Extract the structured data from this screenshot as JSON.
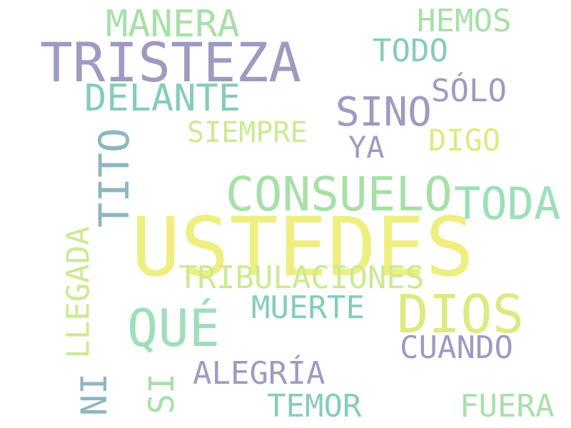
{
  "cloud": {
    "words": {
      "ustedes": "USTEDES",
      "tristeza": "TRISTEZA",
      "consuelo": "CONSUELO",
      "toda": "TODA",
      "dios": "DIOS",
      "que": "QUÉ",
      "manera": "MANERA",
      "delante": "DELANTE",
      "sino": "SINO",
      "tribulaciones": "TRIBULACIONES",
      "tito": "TITO",
      "hemos": "HEMOS",
      "todo": "TODO",
      "solo": "SÓLO",
      "siempre": "SIEMPRE",
      "digo": "DIGO",
      "ya": "YA",
      "llegada": "LLEGADA",
      "muerte": "MUERTE",
      "cuando": "CUANDO",
      "alegria": "ALEGRÍA",
      "ni": "NI",
      "si": "SI",
      "temor": "TEMOR",
      "fuera": "FUERA"
    }
  }
}
